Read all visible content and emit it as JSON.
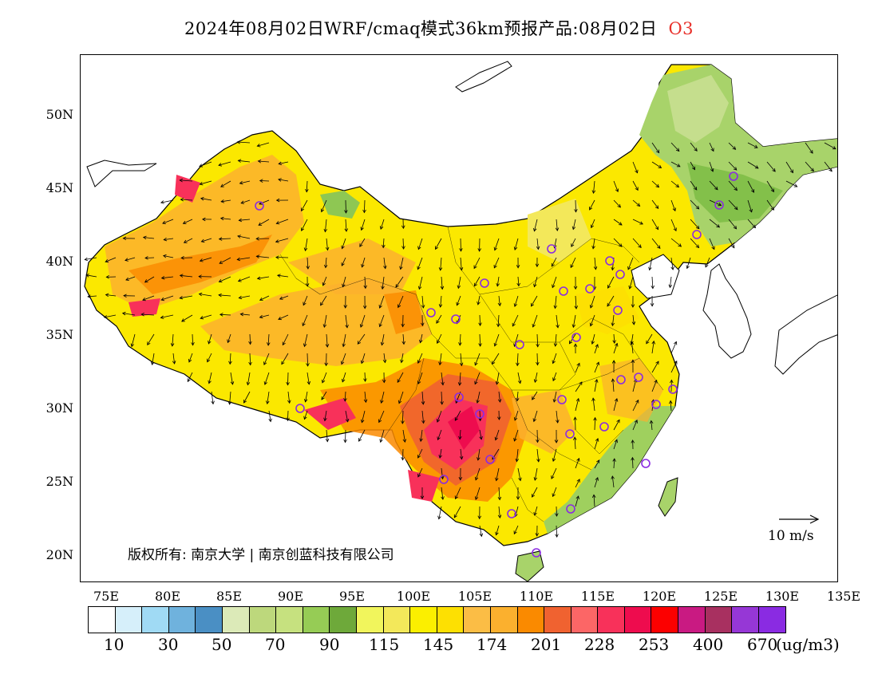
{
  "header": {
    "title": "2024年08月02日WRF/cmaq模式36km预报产品:08月02日",
    "species": "O3"
  },
  "map": {
    "lat_labels": [
      "50N",
      "45N",
      "40N",
      "35N",
      "30N",
      "25N",
      "20N"
    ],
    "lon_labels": [
      "75E",
      "80E",
      "85E",
      "90E",
      "95E",
      "100E",
      "105E",
      "110E",
      "115E",
      "120E",
      "125E",
      "130E",
      "135E"
    ],
    "copyright": "版权所有: 南京大学 | 南京创蓝科技有限公司",
    "wind_scale_label": "10 m/s",
    "colors": {
      "land_background": "#f9e600",
      "ocean": "#ffffff",
      "station_marker": "#8a2be2"
    }
  },
  "legend": {
    "colors": [
      "#ffffff",
      "#d6effa",
      "#a0daf4",
      "#6fb2dd",
      "#4a8fc4",
      "#dceab8",
      "#bdd87c",
      "#c6e17f",
      "#96cc55",
      "#6ea93a",
      "#f1f55c",
      "#f3e85a",
      "#fbef00",
      "#fde002",
      "#fbbd45",
      "#fbb02e",
      "#fa8a00",
      "#f06230",
      "#fc6666",
      "#f8315a",
      "#ee0c4e",
      "#fc0000",
      "#c91a82",
      "#a83060",
      "#9637d6",
      "#8a2be2"
    ],
    "labels": [
      "10",
      "30",
      "50",
      "70",
      "90",
      "115",
      "145",
      "174",
      "201",
      "228",
      "253",
      "400",
      "670"
    ],
    "unit": "(ug/m3)"
  }
}
